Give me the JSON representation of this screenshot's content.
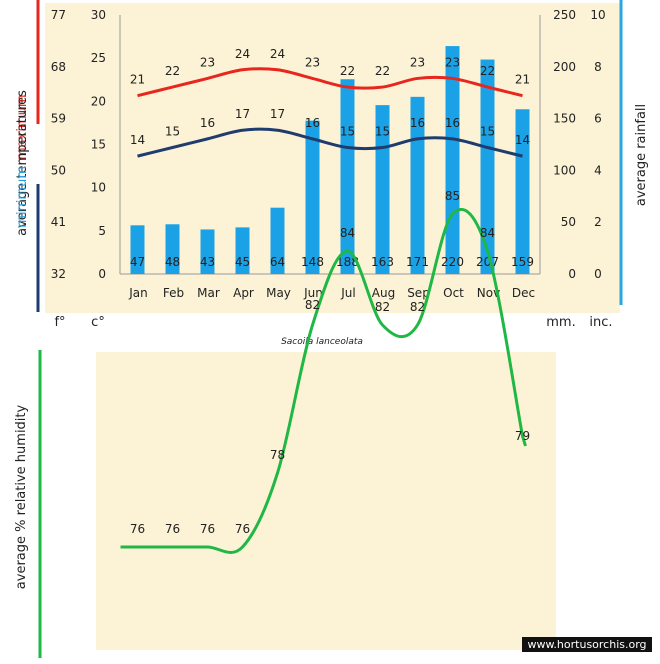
{
  "species_name": "Sacoila lanceolata",
  "watermark": "www.hortusorchis.org",
  "chart_data": [
    {
      "type": "bar+line",
      "title": "",
      "months": [
        "Jan",
        "Feb",
        "Mar",
        "Apr",
        "May",
        "Jun",
        "Jul",
        "Aug",
        "Sep",
        "Oct",
        "Nov",
        "Dec"
      ],
      "rainfall_mm": [
        47,
        48,
        43,
        45,
        64,
        148,
        188,
        163,
        171,
        220,
        207,
        159
      ],
      "max_temp_c": [
        21,
        22,
        23,
        24,
        24,
        23,
        22,
        22,
        23,
        23,
        22,
        21
      ],
      "min_temp_c": [
        14,
        15,
        16,
        17,
        17,
        16,
        15,
        15,
        16,
        16,
        15,
        14
      ],
      "celsius_ticks": [
        "0",
        "5",
        "10",
        "15",
        "20",
        "25",
        "30"
      ],
      "fahrenheit_ticks": [
        "32",
        "41",
        "50",
        "59",
        "68",
        "77"
      ],
      "mm_ticks": [
        "0",
        "50",
        "100",
        "150",
        "200",
        "250"
      ],
      "inch_ticks": [
        "0",
        "2",
        "4",
        "6",
        "8",
        "10"
      ],
      "celsius_range": [
        0,
        30
      ],
      "mm_range": [
        0,
        250
      ],
      "axis_labels": {
        "maximum": "maximum",
        "minimum": "minimum",
        "average_temperatures": "average  temperatures",
        "average_rainfall": "average rainfall",
        "f": "f°",
        "c": "c°",
        "mm": "mm.",
        "inc": "inc."
      },
      "colors": {
        "max": "#e8261e",
        "min": "#1f3c6e",
        "bars": "#1ba2e6",
        "rain_axis": "#2aa6df"
      }
    },
    {
      "type": "line",
      "title": "",
      "values": [
        76,
        76,
        76,
        76,
        78,
        82,
        84,
        82,
        82,
        85,
        84,
        79
      ],
      "ylabel": "average %  relative humidity",
      "colors": {
        "line": "#1fb845"
      }
    }
  ]
}
